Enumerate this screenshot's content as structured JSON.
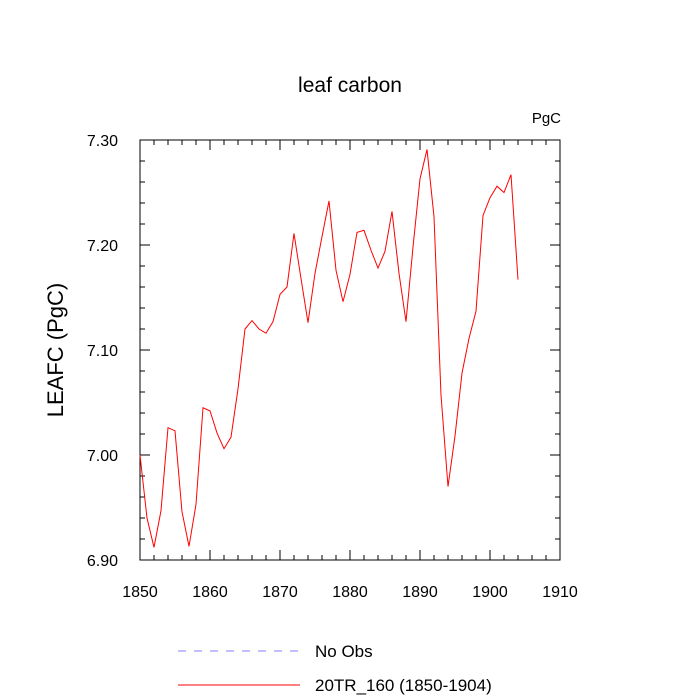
{
  "chart_data": {
    "type": "line",
    "title": "leaf carbon",
    "units_label": "PgC",
    "ylabel": "LEAFC  (PgC)",
    "xlabel": "",
    "xlim": [
      1850,
      1910
    ],
    "ylim": [
      6.9,
      7.3
    ],
    "x_ticks": [
      1850,
      1860,
      1870,
      1880,
      1890,
      1900,
      1910
    ],
    "x_tick_labels": [
      "1850",
      "1860",
      "1870",
      "1880",
      "1890",
      "1900",
      "1910"
    ],
    "y_ticks": [
      6.9,
      7.0,
      7.1,
      7.2,
      7.3
    ],
    "y_tick_labels": [
      "6.90",
      "7.00",
      "7.10",
      "7.20",
      "7.30"
    ],
    "grid": false,
    "legend_position": "bottom",
    "series": [
      {
        "name": "No Obs",
        "color": "#8080ff",
        "dash": "dashed",
        "x": [],
        "values": []
      },
      {
        "name": "20TR_160 (1850-1904)",
        "color": "#ff0000",
        "dash": "solid",
        "x": [
          1850,
          1851,
          1852,
          1853,
          1854,
          1855,
          1856,
          1857,
          1858,
          1859,
          1860,
          1861,
          1862,
          1863,
          1864,
          1865,
          1866,
          1867,
          1868,
          1869,
          1870,
          1871,
          1872,
          1873,
          1874,
          1875,
          1876,
          1877,
          1878,
          1879,
          1880,
          1881,
          1882,
          1883,
          1884,
          1885,
          1886,
          1887,
          1888,
          1889,
          1890,
          1891,
          1892,
          1893,
          1894,
          1895,
          1896,
          1897,
          1898,
          1899,
          1900,
          1901,
          1902,
          1903,
          1904
        ],
        "values": [
          7.0,
          6.94,
          6.912,
          6.947,
          7.026,
          7.023,
          6.946,
          6.913,
          6.953,
          7.045,
          7.042,
          7.021,
          7.006,
          7.017,
          7.063,
          7.12,
          7.128,
          7.12,
          7.116,
          7.127,
          7.153,
          7.16,
          7.211,
          7.168,
          7.126,
          7.173,
          7.208,
          7.242,
          7.176,
          7.146,
          7.172,
          7.212,
          7.214,
          7.195,
          7.178,
          7.194,
          7.232,
          7.173,
          7.127,
          7.198,
          7.263,
          7.291,
          7.227,
          7.057,
          6.97,
          7.018,
          7.078,
          7.111,
          7.137,
          7.228,
          7.245,
          7.256,
          7.25,
          7.267,
          7.167
        ]
      }
    ]
  }
}
